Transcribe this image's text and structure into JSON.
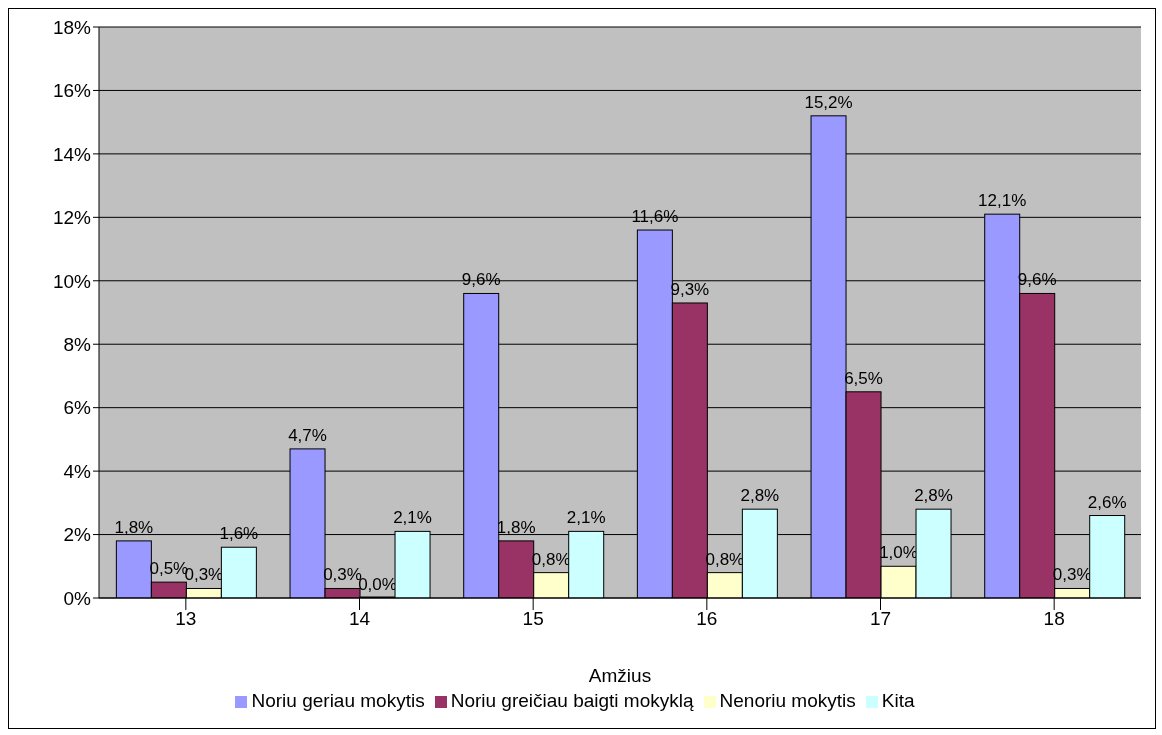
{
  "chart_data": {
    "type": "bar",
    "xlabel": "Amžius",
    "categories": [
      "13",
      "14",
      "15",
      "16",
      "17",
      "18"
    ],
    "series": [
      {
        "name": "Noriu geriau mokytis",
        "color": "#9999ff",
        "values": [
          1.8,
          4.7,
          9.6,
          11.6,
          15.2,
          12.1
        ],
        "value_labels": [
          "1,8%",
          "4,7%",
          "9,6%",
          "11,6%",
          "15,2%",
          "12,1%"
        ]
      },
      {
        "name": "Noriu greičiau baigti mokyklą",
        "color": "#993366",
        "values": [
          0.5,
          0.3,
          1.8,
          9.3,
          6.5,
          9.6
        ],
        "value_labels": [
          "0,5%",
          "0,3%",
          "1,8%",
          "9,3%",
          "6,5%",
          "9,6%"
        ]
      },
      {
        "name": "Nenoriu mokytis",
        "color": "#ffffcc",
        "values": [
          0.3,
          0.0,
          0.8,
          0.8,
          1.0,
          0.3
        ],
        "value_labels": [
          "0,3%",
          "0,0%",
          "0,8%",
          "0,8%",
          "1,0%",
          "0,3%"
        ]
      },
      {
        "name": "Kita",
        "color": "#ccffff",
        "values": [
          1.6,
          2.1,
          2.1,
          2.8,
          2.8,
          2.6
        ],
        "value_labels": [
          "1,6%",
          "2,1%",
          "2,1%",
          "2,8%",
          "2,8%",
          "2,6%"
        ]
      }
    ],
    "ylim": [
      0,
      18
    ],
    "yticks": [
      {
        "value": 0,
        "label": "0%"
      },
      {
        "value": 2,
        "label": "2%"
      },
      {
        "value": 4,
        "label": "4%"
      },
      {
        "value": 6,
        "label": "6%"
      },
      {
        "value": 8,
        "label": "8%"
      },
      {
        "value": 10,
        "label": "10%"
      },
      {
        "value": 12,
        "label": "12%"
      },
      {
        "value": 14,
        "label": "14%"
      },
      {
        "value": 16,
        "label": "16%"
      },
      {
        "value": 18,
        "label": "18%"
      }
    ],
    "grid": "y",
    "legend": "bottom"
  }
}
